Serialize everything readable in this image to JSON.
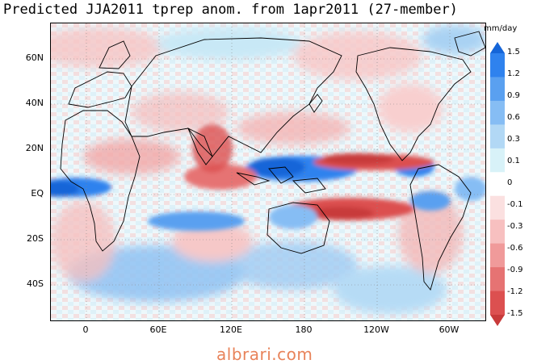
{
  "title": "Predicted JJA2011 tprep anom. from 1apr2011 (27-member)",
  "units": "mm/day",
  "watermark": "albrari.com",
  "lat_labels": [
    "60N",
    "40N",
    "20N",
    "EQ",
    "20S",
    "40S"
  ],
  "lon_labels": [
    "0",
    "60E",
    "120E",
    "180",
    "120W",
    "60W"
  ],
  "colorbar": {
    "ticks": [
      "1.5",
      "1.2",
      "0.9",
      "0.6",
      "0.3",
      "0.1",
      "0",
      "-0.1",
      "-0.3",
      "-0.6",
      "-0.9",
      "-1.2",
      "-1.5"
    ],
    "colors": [
      "#1565d8",
      "#2f82ee",
      "#5aa0f0",
      "#86bdf4",
      "#b2d8f5",
      "#d8f2f8",
      "#ffffff",
      "#fbe0e0",
      "#f7c0c0",
      "#f09a9a",
      "#e67373",
      "#dc5050",
      "#c83a3a"
    ]
  }
}
